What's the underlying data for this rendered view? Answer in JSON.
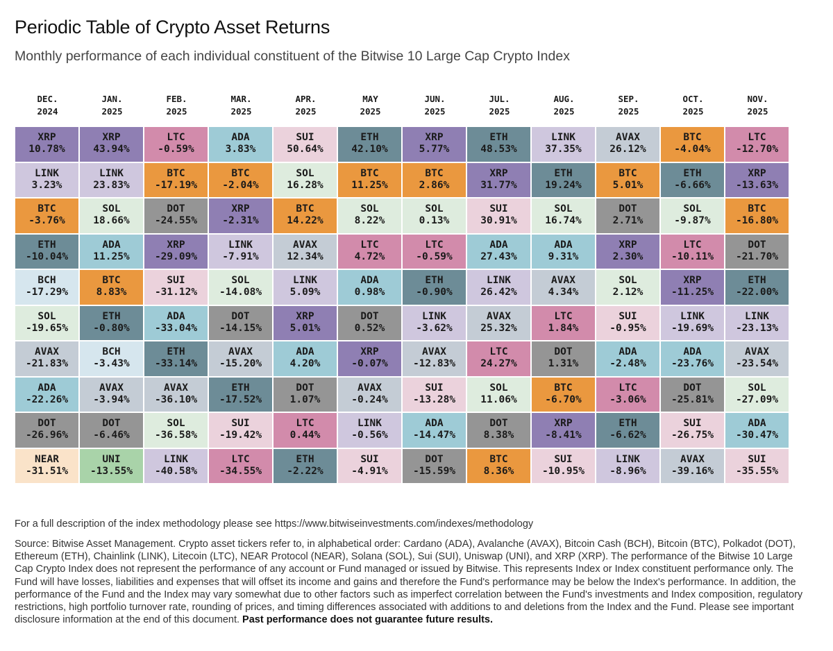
{
  "title": "Periodic Table of Crypto Asset Returns",
  "subtitle": "Monthly performance of each individual constituent of the Bitwise 10 Large Cap Crypto Index",
  "colors": {
    "XRP": "#8f7fb3",
    "LINK": "#cfc7de",
    "BTC": "#ea983f",
    "ETH": "#6d8c97",
    "BCH": "#d6e6ee",
    "SOL": "#deecde",
    "AVAX": "#c4ccd5",
    "ADA": "#9ecbd6",
    "DOT": "#959595",
    "NEAR": "#fae3c9",
    "LTC": "#d28bab",
    "SUI": "#ebd2dc",
    "UNI": "#a9d3a9"
  },
  "chart_data": {
    "type": "table",
    "title": "Periodic Table of Crypto Asset Returns",
    "months": [
      {
        "month": "DEC.",
        "year": "2024"
      },
      {
        "month": "JAN.",
        "year": "2025"
      },
      {
        "month": "FEB.",
        "year": "2025"
      },
      {
        "month": "MAR.",
        "year": "2025"
      },
      {
        "month": "APR.",
        "year": "2025"
      },
      {
        "month": "MAY",
        "year": "2025"
      },
      {
        "month": "JUN.",
        "year": "2025"
      },
      {
        "month": "JUL.",
        "year": "2025"
      },
      {
        "month": "AUG.",
        "year": "2025"
      },
      {
        "month": "SEP.",
        "year": "2025"
      },
      {
        "month": "OCT.",
        "year": "2025"
      },
      {
        "month": "NOV.",
        "year": "2025"
      }
    ],
    "columns": [
      [
        [
          "XRP",
          "10.78%"
        ],
        [
          "LINK",
          "3.23%"
        ],
        [
          "BTC",
          "-3.76%"
        ],
        [
          "ETH",
          "-10.04%"
        ],
        [
          "BCH",
          "-17.29%"
        ],
        [
          "SOL",
          "-19.65%"
        ],
        [
          "AVAX",
          "-21.83%"
        ],
        [
          "ADA",
          "-22.26%"
        ],
        [
          "DOT",
          "-26.96%"
        ],
        [
          "NEAR",
          "-31.51%"
        ]
      ],
      [
        [
          "XRP",
          "43.94%"
        ],
        [
          "LINK",
          "23.83%"
        ],
        [
          "SOL",
          "18.66%"
        ],
        [
          "ADA",
          "11.25%"
        ],
        [
          "BTC",
          "8.83%"
        ],
        [
          "ETH",
          "-0.80%"
        ],
        [
          "BCH",
          "-3.43%"
        ],
        [
          "AVAX",
          "-3.94%"
        ],
        [
          "DOT",
          "-6.46%"
        ],
        [
          "UNI",
          "-13.55%"
        ]
      ],
      [
        [
          "LTC",
          "-0.59%"
        ],
        [
          "BTC",
          "-17.19%"
        ],
        [
          "DOT",
          "-24.55%"
        ],
        [
          "XRP",
          "-29.09%"
        ],
        [
          "SUI",
          "-31.12%"
        ],
        [
          "ADA",
          "-33.04%"
        ],
        [
          "ETH",
          "-33.14%"
        ],
        [
          "AVAX",
          "-36.10%"
        ],
        [
          "SOL",
          "-36.58%"
        ],
        [
          "LINK",
          "-40.58%"
        ]
      ],
      [
        [
          "ADA",
          "3.83%"
        ],
        [
          "BTC",
          "-2.04%"
        ],
        [
          "XRP",
          "-2.31%"
        ],
        [
          "LINK",
          "-7.91%"
        ],
        [
          "SOL",
          "-14.08%"
        ],
        [
          "DOT",
          "-14.15%"
        ],
        [
          "AVAX",
          "-15.20%"
        ],
        [
          "ETH",
          "-17.52%"
        ],
        [
          "SUI",
          "-19.42%"
        ],
        [
          "LTC",
          "-34.55%"
        ]
      ],
      [
        [
          "SUI",
          "50.64%"
        ],
        [
          "SOL",
          "16.28%"
        ],
        [
          "BTC",
          "14.22%"
        ],
        [
          "AVAX",
          "12.34%"
        ],
        [
          "LINK",
          "5.09%"
        ],
        [
          "XRP",
          "5.01%"
        ],
        [
          "ADA",
          "4.20%"
        ],
        [
          "DOT",
          "1.07%"
        ],
        [
          "LTC",
          "0.44%"
        ],
        [
          "ETH",
          "-2.22%"
        ]
      ],
      [
        [
          "ETH",
          "42.10%"
        ],
        [
          "BTC",
          "11.25%"
        ],
        [
          "SOL",
          "8.22%"
        ],
        [
          "LTC",
          "4.72%"
        ],
        [
          "ADA",
          "0.98%"
        ],
        [
          "DOT",
          "0.52%"
        ],
        [
          "XRP",
          "-0.07%"
        ],
        [
          "AVAX",
          "-0.24%"
        ],
        [
          "LINK",
          "-0.56%"
        ],
        [
          "SUI",
          "-4.91%"
        ]
      ],
      [
        [
          "XRP",
          "5.77%"
        ],
        [
          "BTC",
          "2.86%"
        ],
        [
          "SOL",
          "0.13%"
        ],
        [
          "LTC",
          "-0.59%"
        ],
        [
          "ETH",
          "-0.90%"
        ],
        [
          "LINK",
          "-3.62%"
        ],
        [
          "AVAX",
          "-12.83%"
        ],
        [
          "SUI",
          "-13.28%"
        ],
        [
          "ADA",
          "-14.47%"
        ],
        [
          "DOT",
          "-15.59%"
        ]
      ],
      [
        [
          "ETH",
          "48.53%"
        ],
        [
          "XRP",
          "31.77%"
        ],
        [
          "SUI",
          "30.91%"
        ],
        [
          "ADA",
          "27.43%"
        ],
        [
          "LINK",
          "26.42%"
        ],
        [
          "AVAX",
          "25.32%"
        ],
        [
          "LTC",
          "24.27%"
        ],
        [
          "SOL",
          "11.06%"
        ],
        [
          "DOT",
          "8.38%"
        ],
        [
          "BTC",
          "8.36%"
        ]
      ],
      [
        [
          "LINK",
          "37.35%"
        ],
        [
          "ETH",
          "19.24%"
        ],
        [
          "SOL",
          "16.74%"
        ],
        [
          "ADA",
          "9.31%"
        ],
        [
          "AVAX",
          "4.34%"
        ],
        [
          "LTC",
          "1.84%"
        ],
        [
          "DOT",
          "1.31%"
        ],
        [
          "BTC",
          "-6.70%"
        ],
        [
          "XRP",
          "-8.41%"
        ],
        [
          "SUI",
          "-10.95%"
        ]
      ],
      [
        [
          "AVAX",
          "26.12%"
        ],
        [
          "BTC",
          "5.01%"
        ],
        [
          "DOT",
          "2.71%"
        ],
        [
          "XRP",
          "2.30%"
        ],
        [
          "SOL",
          "2.12%"
        ],
        [
          "SUI",
          "-0.95%"
        ],
        [
          "ADA",
          "-2.48%"
        ],
        [
          "LTC",
          "-3.06%"
        ],
        [
          "ETH",
          "-6.62%"
        ],
        [
          "LINK",
          "-8.96%"
        ]
      ],
      [
        [
          "BTC",
          "-4.04%"
        ],
        [
          "ETH",
          "-6.66%"
        ],
        [
          "SOL",
          "-9.87%"
        ],
        [
          "LTC",
          "-10.11%"
        ],
        [
          "XRP",
          "-11.25%"
        ],
        [
          "LINK",
          "-19.69%"
        ],
        [
          "ADA",
          "-23.76%"
        ],
        [
          "DOT",
          "-25.81%"
        ],
        [
          "SUI",
          "-26.75%"
        ],
        [
          "AVAX",
          "-39.16%"
        ]
      ],
      [
        [
          "LTC",
          "-12.70%"
        ],
        [
          "XRP",
          "-13.63%"
        ],
        [
          "BTC",
          "-16.80%"
        ],
        [
          "DOT",
          "-21.70%"
        ],
        [
          "ETH",
          "-22.00%"
        ],
        [
          "LINK",
          "-23.13%"
        ],
        [
          "AVAX",
          "-23.54%"
        ],
        [
          "SOL",
          "-27.09%"
        ],
        [
          "ADA",
          "-30.47%"
        ],
        [
          "SUI",
          "-35.55%"
        ]
      ]
    ]
  },
  "footnotes": {
    "methodology": "For a full description of the index methodology please see https://www.bitwiseinvestments.com/indexes/methodology",
    "source": "Source: Bitwise Asset Management. Crypto asset tickers refer to, in alphabetical order: Cardano (ADA), Avalanche (AVAX), Bitcoin Cash (BCH), Bitcoin (BTC), Polkadot (DOT), Ethereum (ETH), Chainlink (LINK), Litecoin (LTC), NEAR Protocol (NEAR), Solana (SOL), Sui (SUI), Uniswap (UNI), and XRP (XRP). The performance of the Bitwise 10 Large Cap Crypto Index does not represent the performance of any account or Fund managed or issued by Bitwise. This represents Index or Index constituent performance only. The Fund will have losses, liabilities and expenses that will offset its income and gains and therefore the Fund's performance may be below the Index's performance. In addition, the performance of the Fund and the Index may vary somewhat due to other factors such as imperfect correlation between the Fund's investments and Index composition, regulatory restrictions, high portfolio turnover rate, rounding of prices, and timing differences associated with additions to and deletions from the Index and the Fund. Please see important disclosure information at the end of this document.",
    "disclaimer_bold": "Past performance does not guarantee future results."
  }
}
